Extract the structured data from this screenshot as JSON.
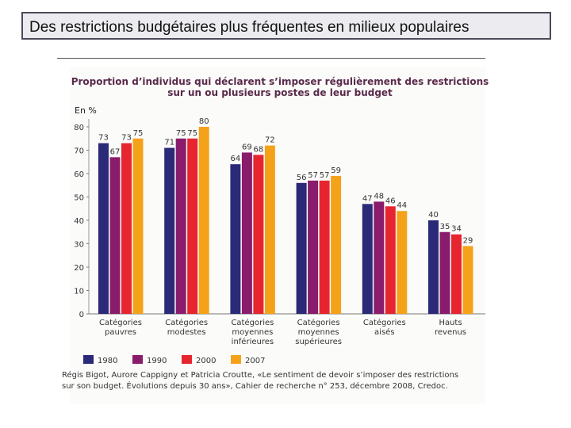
{
  "slide": {
    "title": "Des restrictions budgétaires plus fréquentes en milieux populaires"
  },
  "chart_data": {
    "type": "bar",
    "title": "Proportion d’individus qui déclarent s’imposer régulièrement des restrictions sur un ou plusieurs postes de leur budget",
    "title_lines": [
      "Proportion d’individus qui déclarent s’imposer régulièrement des restrictions",
      "sur un ou plusieurs postes de leur budget"
    ],
    "ylabel": "En %",
    "ylim": [
      0,
      80
    ],
    "yticks": [
      0,
      10,
      20,
      30,
      40,
      50,
      60,
      70,
      80
    ],
    "categories": [
      [
        "Catégories",
        "pauvres"
      ],
      [
        "Catégories",
        "modestes"
      ],
      [
        "Catégories",
        "moyennes",
        "inférieures"
      ],
      [
        "Catégories",
        "moyennes",
        "supérieures"
      ],
      [
        "Catégories",
        "aisés"
      ],
      [
        "Hauts",
        "revenus"
      ]
    ],
    "series": [
      {
        "name": "1980",
        "color": "#2b2a78",
        "values": [
          73,
          71,
          64,
          56,
          47,
          40
        ]
      },
      {
        "name": "1990",
        "color": "#8a1c6c",
        "values": [
          67,
          75,
          69,
          57,
          48,
          35
        ]
      },
      {
        "name": "2000",
        "color": "#e6252f",
        "values": [
          73,
          75,
          68,
          57,
          46,
          34
        ]
      },
      {
        "name": "2007",
        "color": "#f5a21b",
        "values": [
          75,
          80,
          72,
          59,
          44,
          29
        ]
      }
    ],
    "legend_position": "bottom-left",
    "grid": false,
    "source": [
      "Régis Bigot, Aurore Cappigny et Patricia Croutte, «Le sentiment de devoir s’imposer des restrictions",
      "sur son budget. Évolutions depuis 30 ans», Cahier de recherche n° 253, décembre 2008, Credoc."
    ]
  }
}
